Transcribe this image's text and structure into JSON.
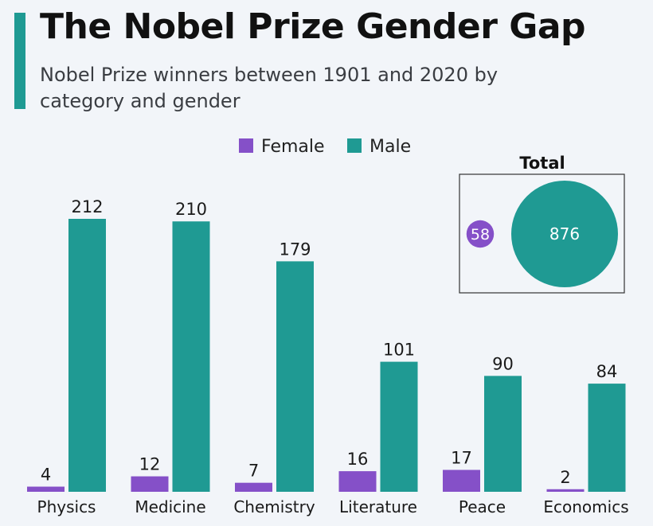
{
  "header": {
    "title": "The Nobel Prize Gender Gap",
    "subtitle": "Nobel Prize winners between 1901 and 2020 by category and gender"
  },
  "colors": {
    "female": "#8550c8",
    "male": "#1f9a93",
    "accent": "#1f9a93"
  },
  "chart_data": {
    "type": "bar",
    "title": "The Nobel Prize Gender Gap",
    "categories": [
      "Physics",
      "Medicine",
      "Chemistry",
      "Literature",
      "Peace",
      "Economics"
    ],
    "series": [
      {
        "name": "Female",
        "values": [
          4,
          12,
          7,
          16,
          17,
          2
        ]
      },
      {
        "name": "Male",
        "values": [
          212,
          210,
          179,
          101,
          90,
          84
        ]
      }
    ],
    "legend_position": "top-center",
    "ylim": [
      0,
      212
    ],
    "grid": false,
    "totals": {
      "title": "Total",
      "female": 58,
      "male": 876
    }
  }
}
